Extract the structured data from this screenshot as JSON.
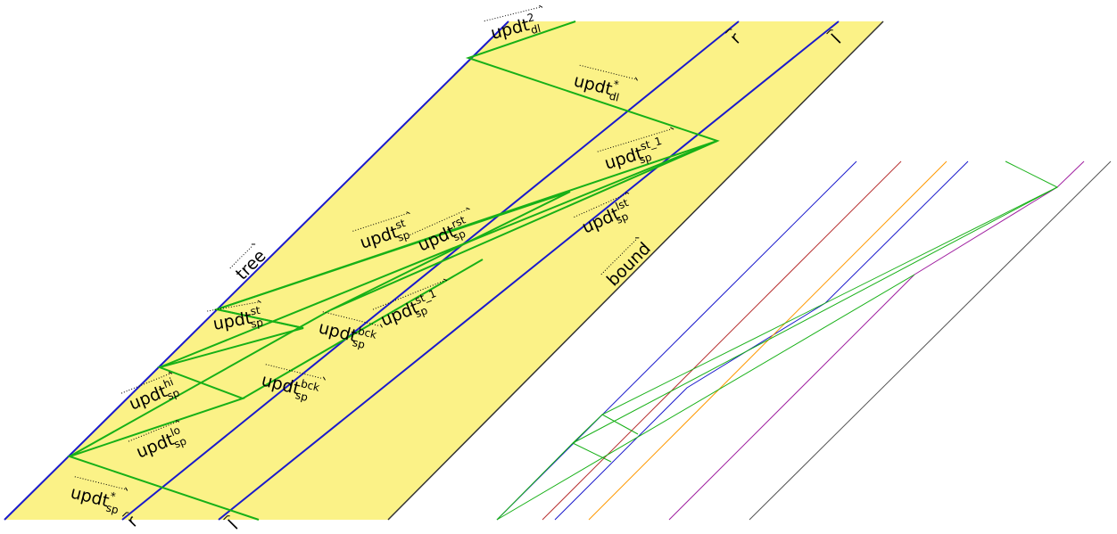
{
  "colors": {
    "background_band": "#fbf287",
    "blue": "#1a1acc",
    "green": "#17b017",
    "border": "#333333",
    "red": "#b83232",
    "orange": "#ff9900",
    "purple": "#a020a0",
    "gray": "#555555"
  },
  "labels": {
    "tree": "tree",
    "r": "r",
    "l": "l",
    "bound": "bound",
    "upd_main": "updt",
    "sp": "sp",
    "dl": "dl",
    "sup_2": "2",
    "sup_star": "*",
    "sup_st": "st",
    "sup_rst": "rst",
    "sup_st1": "st_1",
    "sup_lst": "lst",
    "sup_bck": "bck",
    "sup_hi": "hi",
    "sup_lo": "lo"
  }
}
